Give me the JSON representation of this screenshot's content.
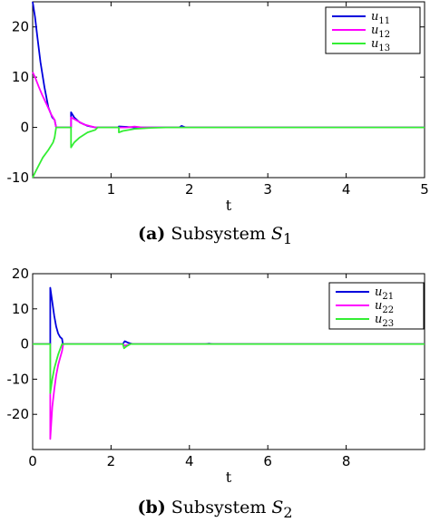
{
  "captions": [
    {
      "tag": "(a)",
      "text": "Subsystem",
      "sym": "S",
      "sub": "1"
    },
    {
      "tag": "(b)",
      "text": "Subsystem",
      "sym": "S",
      "sub": "2"
    }
  ],
  "colors": {
    "u1": "#0000dd",
    "u2": "#ff00ff",
    "u3": "#33ee33"
  },
  "chart_data": [
    {
      "type": "line",
      "xlabel": "t",
      "ylabel": "",
      "xlim": [
        0,
        5
      ],
      "ylim": [
        -10,
        25
      ],
      "xticks": [
        1,
        2,
        3,
        4,
        5
      ],
      "yticks": [
        -10,
        0,
        10,
        20
      ],
      "legend": "top-right",
      "series": [
        {
          "name": "u11",
          "label": "u",
          "sub": "11",
          "color": "#0000dd",
          "points": [
            [
              0,
              25
            ],
            [
              0.03,
              22
            ],
            [
              0.06,
              18
            ],
            [
              0.1,
              13
            ],
            [
              0.15,
              8
            ],
            [
              0.2,
              4
            ],
            [
              0.25,
              2
            ],
            [
              0.28,
              1.5
            ],
            [
              0.3,
              0
            ],
            [
              0.49,
              0
            ],
            [
              0.49,
              3
            ],
            [
              0.53,
              2
            ],
            [
              0.6,
              1
            ],
            [
              0.7,
              0.3
            ],
            [
              0.8,
              0
            ],
            [
              1.09,
              0
            ],
            [
              1.1,
              0.2
            ],
            [
              1.2,
              0.1
            ],
            [
              1.3,
              0
            ],
            [
              1.87,
              0
            ],
            [
              1.9,
              0.3
            ],
            [
              1.95,
              0
            ],
            [
              5,
              0
            ]
          ]
        },
        {
          "name": "u12",
          "label": "u",
          "sub": "12",
          "color": "#ff00ff",
          "points": [
            [
              0,
              11
            ],
            [
              0.03,
              10
            ],
            [
              0.08,
              8
            ],
            [
              0.12,
              6.5
            ],
            [
              0.18,
              4.5
            ],
            [
              0.24,
              2.5
            ],
            [
              0.28,
              1.5
            ],
            [
              0.3,
              0
            ],
            [
              0.49,
              0
            ],
            [
              0.49,
              2
            ],
            [
              0.55,
              1.5
            ],
            [
              0.65,
              0.6
            ],
            [
              0.8,
              0
            ],
            [
              1.2,
              0
            ],
            [
              1.3,
              0.15
            ],
            [
              1.4,
              0
            ],
            [
              5,
              0
            ]
          ]
        },
        {
          "name": "u13",
          "label": "u",
          "sub": "13",
          "color": "#33ee33",
          "points": [
            [
              0,
              -10
            ],
            [
              0.03,
              -9
            ],
            [
              0.08,
              -7.5
            ],
            [
              0.13,
              -6
            ],
            [
              0.2,
              -4.5
            ],
            [
              0.26,
              -3
            ],
            [
              0.28,
              -2
            ],
            [
              0.3,
              0
            ],
            [
              0.49,
              0
            ],
            [
              0.49,
              -4
            ],
            [
              0.53,
              -3
            ],
            [
              0.6,
              -2
            ],
            [
              0.7,
              -1
            ],
            [
              0.8,
              -0.5
            ],
            [
              0.83,
              0
            ],
            [
              1.1,
              0
            ],
            [
              1.1,
              -1
            ],
            [
              1.15,
              -0.7
            ],
            [
              1.3,
              -0.3
            ],
            [
              1.5,
              -0.1
            ],
            [
              1.7,
              0
            ],
            [
              5,
              0
            ]
          ]
        }
      ]
    },
    {
      "type": "line",
      "xlabel": "t",
      "ylabel": "",
      "xlim": [
        0,
        10
      ],
      "ylim": [
        -30,
        20
      ],
      "xticks": [
        0,
        2,
        4,
        6,
        8
      ],
      "yticks": [
        -20,
        -10,
        0,
        10,
        20
      ],
      "legend": "top-right",
      "series": [
        {
          "name": "u21",
          "label": "u",
          "sub": "21",
          "color": "#0000dd",
          "points": [
            [
              0,
              0
            ],
            [
              0.45,
              0
            ],
            [
              0.45,
              16
            ],
            [
              0.5,
              12
            ],
            [
              0.55,
              8
            ],
            [
              0.6,
              5
            ],
            [
              0.65,
              3
            ],
            [
              0.7,
              2
            ],
            [
              0.75,
              1.5
            ],
            [
              0.77,
              0
            ],
            [
              2.3,
              0
            ],
            [
              2.35,
              0.8
            ],
            [
              2.45,
              0.3
            ],
            [
              2.55,
              0
            ],
            [
              4.4,
              0
            ],
            [
              4.5,
              0.1
            ],
            [
              4.6,
              0
            ],
            [
              10,
              0
            ]
          ]
        },
        {
          "name": "u22",
          "label": "u",
          "sub": "22",
          "color": "#ff00ff",
          "points": [
            [
              0,
              0
            ],
            [
              0.45,
              0
            ],
            [
              0.45,
              -27
            ],
            [
              0.5,
              -18
            ],
            [
              0.55,
              -13
            ],
            [
              0.6,
              -9
            ],
            [
              0.65,
              -6
            ],
            [
              0.7,
              -4
            ],
            [
              0.75,
              -2
            ],
            [
              0.78,
              0
            ],
            [
              2.3,
              0
            ],
            [
              2.35,
              -0.5
            ],
            [
              2.5,
              0
            ],
            [
              10,
              0
            ]
          ]
        },
        {
          "name": "u23",
          "label": "u",
          "sub": "23",
          "color": "#33ee33",
          "points": [
            [
              0,
              0
            ],
            [
              0.45,
              0
            ],
            [
              0.45,
              -14
            ],
            [
              0.5,
              -10
            ],
            [
              0.55,
              -7
            ],
            [
              0.6,
              -5
            ],
            [
              0.65,
              -3
            ],
            [
              0.7,
              -1.5
            ],
            [
              0.75,
              0
            ],
            [
              2.3,
              0
            ],
            [
              2.33,
              -1.2
            ],
            [
              2.4,
              -0.6
            ],
            [
              2.5,
              0
            ],
            [
              10,
              0
            ]
          ]
        }
      ]
    }
  ]
}
